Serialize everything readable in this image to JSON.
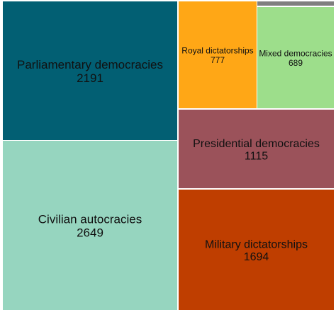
{
  "chart_data": {
    "type": "treemap",
    "title": "",
    "items": [
      {
        "label": "Parliamentary democracies",
        "value": 2191,
        "color": "#025f73"
      },
      {
        "label": "Civilian autocracies",
        "value": 2649,
        "color": "#96d5bf"
      },
      {
        "label": "Royal dictatorships",
        "value": 777,
        "color": "#ffa716"
      },
      {
        "label": "Mixed democracies",
        "value": 689,
        "color": "#9dde8b"
      },
      {
        "label": "Presidential democracies",
        "value": 1115,
        "color": "#9b525a"
      },
      {
        "label": "Military dictatorships",
        "value": 1694,
        "color": "#bf3e00"
      },
      {
        "label": "",
        "value": 12,
        "color": "#7f7f7f"
      }
    ]
  }
}
